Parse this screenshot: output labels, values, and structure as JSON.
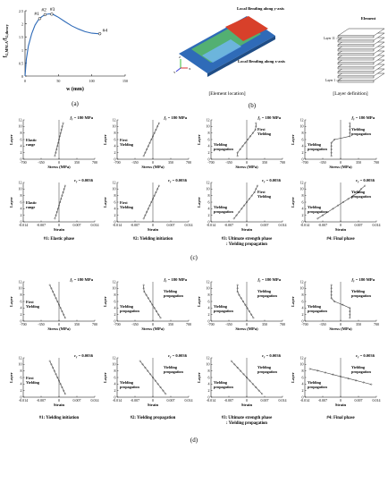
{
  "panel_labels": {
    "a": "(a)",
    "b": "(b)",
    "c": "(c)",
    "d": "(d)"
  },
  "panel_a": {
    "chart_data": {
      "type": "line",
      "ylabel": "f",
      "ylabel_sub": "G,MNLA",
      "ylabel_sep": "/f",
      "ylabel_sub2": "G,theory",
      "xlabel": "w (mm)",
      "xlim": [
        0,
        150
      ],
      "ylim": [
        0,
        2.5
      ],
      "xticks": [
        "0",
        "50",
        "100",
        "150"
      ],
      "yticks": [
        "0",
        "0.5",
        "1",
        "1.5",
        "2",
        "2.5"
      ],
      "x": [
        0,
        2,
        5,
        10,
        15,
        20,
        25,
        30,
        36,
        42,
        50,
        60,
        70,
        80,
        90,
        100,
        110
      ],
      "y": [
        0,
        0.65,
        1.15,
        1.62,
        1.95,
        2.15,
        2.27,
        2.35,
        2.38,
        2.36,
        2.25,
        2.08,
        1.92,
        1.8,
        1.7,
        1.64,
        1.62
      ],
      "markers": [
        {
          "label": "#1",
          "x": 22,
          "y": 2.2
        },
        {
          "label": "#2",
          "x": 30,
          "y": 2.35
        },
        {
          "label": "#3",
          "x": 40,
          "y": 2.37
        },
        {
          "label": "#4",
          "x": 112,
          "y": 1.62
        }
      ]
    }
  },
  "panel_b": {
    "local_y": "Local Bending along y-axis",
    "local_x": "Local Bending along x-axis",
    "element_location": "[Element location]",
    "layer_definition": "[Layer definition]",
    "element": "Element",
    "layer11": "Layer 11",
    "layer1": "Layer 1",
    "axis_z": "Z",
    "axis_y": "Y",
    "axis_x": "X"
  },
  "common": {
    "layer_label": "Layer",
    "stress_label": "Stress (MPa)",
    "strain_label": "Strain",
    "fy_value": "= 180 MPa",
    "ey_value": "= 0.0036",
    "stress_ticks": [
      "-700",
      "-350",
      "0",
      "350",
      "700"
    ],
    "strain_ticks": [
      "-0.014",
      "-0.007",
      "0",
      "0.007",
      "0.014"
    ],
    "layer_ticks": [
      "0",
      "2",
      "4",
      "6",
      "8",
      "10",
      "12"
    ]
  },
  "panel_c": {
    "captions": [
      "#1: Elastic phase",
      "#2: Yielding initiation",
      "#3: Ultimate strength phase",
      "#4: Final phase"
    ],
    "caption3_line2": ": Yielding propagation",
    "stress_plots": [
      {
        "annotations": [
          "Elastic",
          "range"
        ],
        "data": [
          [
            -80,
            1
          ],
          [
            -64,
            2
          ],
          [
            -48,
            3
          ],
          [
            -32,
            4
          ],
          [
            -16,
            5
          ],
          [
            0,
            6
          ],
          [
            16,
            7
          ],
          [
            32,
            8
          ],
          [
            48,
            9
          ],
          [
            64,
            10
          ],
          [
            80,
            11
          ]
        ]
      },
      {
        "annotations": [
          "First",
          "Yielding"
        ],
        "data": [
          [
            -180,
            1
          ],
          [
            -150,
            2
          ],
          [
            -120,
            3
          ],
          [
            -90,
            4
          ],
          [
            -60,
            5
          ],
          [
            -30,
            6
          ],
          [
            0,
            7
          ],
          [
            30,
            8
          ],
          [
            60,
            9
          ],
          [
            90,
            10
          ],
          [
            120,
            11
          ]
        ]
      },
      {
        "annotations": [
          "Yielding",
          "propagation",
          "First",
          "Yielding"
        ],
        "data": [
          [
            -180,
            1
          ],
          [
            -180,
            2
          ],
          [
            -130,
            3
          ],
          [
            -80,
            4
          ],
          [
            -30,
            5
          ],
          [
            20,
            6
          ],
          [
            70,
            7
          ],
          [
            120,
            8
          ],
          [
            170,
            9
          ],
          [
            180,
            10
          ],
          [
            180,
            11
          ]
        ]
      },
      {
        "annotations": [
          "Yielding",
          "propagation",
          "Yielding",
          "propagation"
        ],
        "data": [
          [
            -180,
            1
          ],
          [
            -180,
            2
          ],
          [
            -180,
            3
          ],
          [
            -180,
            4
          ],
          [
            -180,
            5
          ],
          [
            -120,
            6
          ],
          [
            180,
            7
          ],
          [
            180,
            8
          ],
          [
            180,
            9
          ],
          [
            180,
            10
          ],
          [
            180,
            11
          ]
        ]
      }
    ],
    "strain_plots": [
      {
        "annotations": [
          "Elastic",
          "range"
        ],
        "data": [
          [
            -0.0016,
            1
          ],
          [
            -0.0012,
            2
          ],
          [
            -0.0008,
            3
          ],
          [
            -0.0004,
            4
          ],
          [
            0,
            5
          ],
          [
            0.0004,
            6
          ],
          [
            0.0008,
            7
          ],
          [
            0.0012,
            8
          ],
          [
            0.0016,
            9
          ],
          [
            0.002,
            10
          ],
          [
            0.0024,
            11
          ]
        ]
      },
      {
        "annotations": [
          "First",
          "Yielding"
        ],
        "data": [
          [
            -0.0036,
            1
          ],
          [
            -0.003,
            2
          ],
          [
            -0.0024,
            3
          ],
          [
            -0.0018,
            4
          ],
          [
            -0.0012,
            5
          ],
          [
            -0.0006,
            6
          ],
          [
            0,
            7
          ],
          [
            0.0006,
            8
          ],
          [
            0.0012,
            9
          ],
          [
            0.0018,
            10
          ],
          [
            0.0024,
            11
          ]
        ]
      },
      {
        "annotations": [
          "Yielding",
          "propagation",
          "First",
          "Yielding"
        ],
        "data": [
          [
            -0.005,
            1
          ],
          [
            -0.004,
            2
          ],
          [
            -0.003,
            3
          ],
          [
            -0.002,
            4
          ],
          [
            -0.001,
            5
          ],
          [
            0,
            6
          ],
          [
            0.001,
            7
          ],
          [
            0.002,
            8
          ],
          [
            0.003,
            9
          ],
          [
            0.0036,
            10
          ],
          [
            0.0042,
            11
          ]
        ]
      },
      {
        "annotations": [
          "Yielding",
          "propagation",
          "Yielding",
          "propagation"
        ],
        "data": [
          [
            -0.009,
            1
          ],
          [
            -0.007,
            2
          ],
          [
            -0.005,
            3
          ],
          [
            -0.003,
            4
          ],
          [
            -0.001,
            5
          ],
          [
            0.001,
            6
          ],
          [
            0.003,
            7
          ],
          [
            0.005,
            8
          ],
          [
            0.007,
            9
          ],
          [
            0.008,
            10
          ],
          [
            0.0095,
            11
          ]
        ]
      }
    ]
  },
  "panel_d": {
    "captions": [
      "#1: Yielding initiation",
      "#2: Yielding propagation",
      "#3: Ultimate strength phase",
      "#4: Final phase"
    ],
    "caption3_line2": ": Yielding propagation",
    "stress_plots": [
      {
        "annotations": [
          "First",
          "Yielding"
        ],
        "data": [
          [
            -180,
            11
          ],
          [
            -150,
            10
          ],
          [
            -120,
            9
          ],
          [
            -90,
            8
          ],
          [
            -60,
            7
          ],
          [
            -30,
            6
          ],
          [
            0,
            5
          ],
          [
            30,
            4
          ],
          [
            60,
            3
          ],
          [
            90,
            2
          ],
          [
            120,
            1
          ]
        ]
      },
      {
        "annotations": [
          "Yielding",
          "propagation",
          "Yielding",
          "propagation"
        ],
        "data": [
          [
            -180,
            11
          ],
          [
            -180,
            10
          ],
          [
            -170,
            9
          ],
          [
            -130,
            8
          ],
          [
            -90,
            7
          ],
          [
            -50,
            6
          ],
          [
            -10,
            5
          ],
          [
            30,
            4
          ],
          [
            70,
            3
          ],
          [
            110,
            2
          ],
          [
            150,
            1
          ]
        ]
      },
      {
        "annotations": [
          "Yielding",
          "propagation",
          "Yielding",
          "propagation"
        ],
        "data": [
          [
            -180,
            11
          ],
          [
            -180,
            10
          ],
          [
            -180,
            9
          ],
          [
            -150,
            8
          ],
          [
            -110,
            7
          ],
          [
            -70,
            6
          ],
          [
            -30,
            5
          ],
          [
            10,
            4
          ],
          [
            50,
            3
          ],
          [
            90,
            2
          ],
          [
            130,
            1
          ]
        ]
      },
      {
        "annotations": [
          "Yielding",
          "propagation",
          "Yielding",
          "propagation"
        ],
        "data": [
          [
            -180,
            11
          ],
          [
            -180,
            10
          ],
          [
            -180,
            9
          ],
          [
            -180,
            8
          ],
          [
            -180,
            7
          ],
          [
            -120,
            6
          ],
          [
            40,
            5
          ],
          [
            180,
            4
          ],
          [
            180,
            3
          ],
          [
            180,
            2
          ],
          [
            180,
            1
          ]
        ]
      }
    ],
    "strain_plots": [
      {
        "annotations": [
          "First",
          "Yielding"
        ],
        "data": [
          [
            -0.0036,
            11
          ],
          [
            -0.003,
            10
          ],
          [
            -0.0024,
            9
          ],
          [
            -0.0018,
            8
          ],
          [
            -0.0012,
            7
          ],
          [
            -0.0006,
            6
          ],
          [
            0,
            5
          ],
          [
            0.0006,
            4
          ],
          [
            0.0012,
            3
          ],
          [
            0.0018,
            2
          ],
          [
            0.0024,
            1
          ]
        ]
      },
      {
        "annotations": [
          "Yielding",
          "propagation",
          "Yielding",
          "propagation"
        ],
        "data": [
          [
            -0.005,
            11
          ],
          [
            -0.004,
            10
          ],
          [
            -0.003,
            9
          ],
          [
            -0.002,
            8
          ],
          [
            -0.001,
            7
          ],
          [
            0,
            6
          ],
          [
            0.001,
            5
          ],
          [
            0.002,
            4
          ],
          [
            0.003,
            3
          ],
          [
            0.004,
            2
          ],
          [
            0.005,
            1
          ]
        ]
      },
      {
        "annotations": [
          "Yielding",
          "propagation",
          "Yielding",
          "propagation"
        ],
        "data": [
          [
            -0.006,
            11
          ],
          [
            -0.0048,
            10
          ],
          [
            -0.0036,
            9
          ],
          [
            -0.0024,
            8
          ],
          [
            -0.0012,
            7
          ],
          [
            0,
            6
          ],
          [
            0.0012,
            5
          ],
          [
            0.0024,
            4
          ],
          [
            0.0036,
            3
          ],
          [
            0.0048,
            2
          ],
          [
            0.006,
            1
          ]
        ]
      },
      {
        "annotations": [
          "Yielding",
          "propagation",
          "Yielding",
          "propagation"
        ],
        "data": [
          [
            -0.012,
            8.6
          ],
          [
            -0.009,
            8.1
          ],
          [
            -0.006,
            7.5
          ],
          [
            -0.003,
            6.9
          ],
          [
            0,
            6.3
          ],
          [
            0.003,
            5.7
          ],
          [
            0.006,
            5.1
          ],
          [
            0.009,
            4.5
          ],
          [
            0.012,
            3.9
          ]
        ]
      }
    ]
  },
  "colors": {
    "line": "#444444",
    "panel_a_line": "#2f6bb8",
    "fem_red": "#d8402a",
    "fem_blue": "#2f6bb8",
    "fem_green": "#58b86a"
  }
}
